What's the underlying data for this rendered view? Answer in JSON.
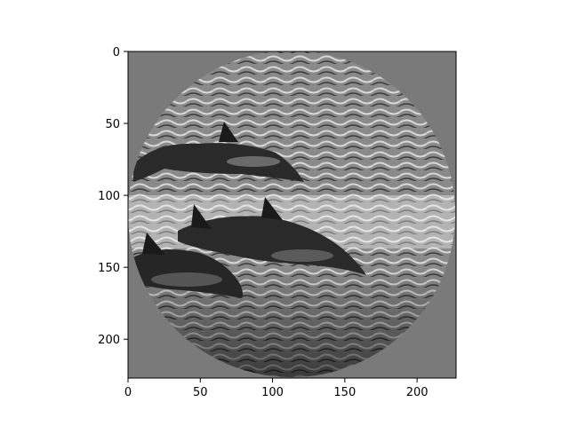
{
  "figure": {
    "background": "#ffffff",
    "image_depiction": "grayscale photo of dolphins leaping through ocean water inside a circular mask on a uniform gray background",
    "mask_fill": "#7a7a7a"
  },
  "chart_data": {
    "type": "image",
    "xlabel": "",
    "ylabel": "",
    "title": "",
    "xlim": [
      0,
      227
    ],
    "ylim": [
      227,
      0
    ],
    "x_ticks": [
      0,
      50,
      100,
      150,
      200
    ],
    "y_ticks": [
      0,
      50,
      100,
      150,
      200
    ],
    "x_tick_labels": [
      "0",
      "50",
      "100",
      "150",
      "200"
    ],
    "y_tick_labels": [
      "0",
      "50",
      "100",
      "150",
      "200"
    ],
    "grid": false,
    "colormap": "gray"
  }
}
